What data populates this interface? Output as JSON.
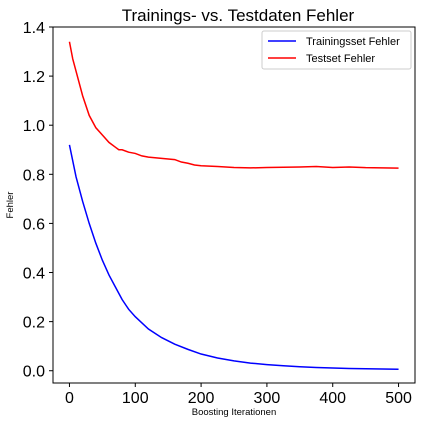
{
  "chart_data": {
    "type": "line",
    "title": "Trainings- vs. Testdaten Fehler",
    "xlabel": "Boosting Iterationen",
    "ylabel": "Fehler",
    "xlim": [
      -25,
      525
    ],
    "ylim": [
      -0.05,
      1.4
    ],
    "xticks": [
      0,
      100,
      200,
      300,
      400,
      500
    ],
    "yticks": [
      0.0,
      0.2,
      0.4,
      0.6,
      0.8,
      1.0,
      1.2,
      1.4
    ],
    "xtick_labels": [
      "0",
      "100",
      "200",
      "300",
      "400",
      "500"
    ],
    "ytick_labels": [
      "0.0",
      "0.2",
      "0.4",
      "0.6",
      "0.8",
      "1.0",
      "1.2",
      "1.4"
    ],
    "grid": false,
    "legend": "top-right",
    "series": [
      {
        "name": "Trainingsset Fehler",
        "color": "#0000ff",
        "x": [
          0,
          10,
          20,
          30,
          40,
          50,
          60,
          70,
          80,
          90,
          100,
          120,
          140,
          160,
          180,
          200,
          225,
          250,
          275,
          300,
          325,
          350,
          375,
          400,
          425,
          450,
          475,
          500
        ],
        "y": [
          0.92,
          0.79,
          0.69,
          0.6,
          0.52,
          0.45,
          0.39,
          0.34,
          0.29,
          0.25,
          0.22,
          0.17,
          0.135,
          0.108,
          0.087,
          0.068,
          0.052,
          0.04,
          0.031,
          0.025,
          0.02,
          0.016,
          0.013,
          0.011,
          0.009,
          0.008,
          0.007,
          0.006
        ]
      },
      {
        "name": "Testset Fehler",
        "color": "#ff0000",
        "x": [
          0,
          5,
          10,
          20,
          30,
          40,
          50,
          60,
          70,
          75,
          80,
          90,
          100,
          110,
          120,
          140,
          160,
          170,
          180,
          190,
          200,
          225,
          250,
          275,
          300,
          325,
          350,
          375,
          400,
          425,
          450,
          475,
          500
        ],
        "y": [
          1.34,
          1.27,
          1.22,
          1.12,
          1.04,
          0.99,
          0.96,
          0.93,
          0.91,
          0.9,
          0.9,
          0.89,
          0.885,
          0.875,
          0.87,
          0.865,
          0.86,
          0.85,
          0.845,
          0.838,
          0.835,
          0.832,
          0.828,
          0.826,
          0.828,
          0.829,
          0.83,
          0.832,
          0.828,
          0.83,
          0.827,
          0.826,
          0.825
        ]
      }
    ]
  }
}
